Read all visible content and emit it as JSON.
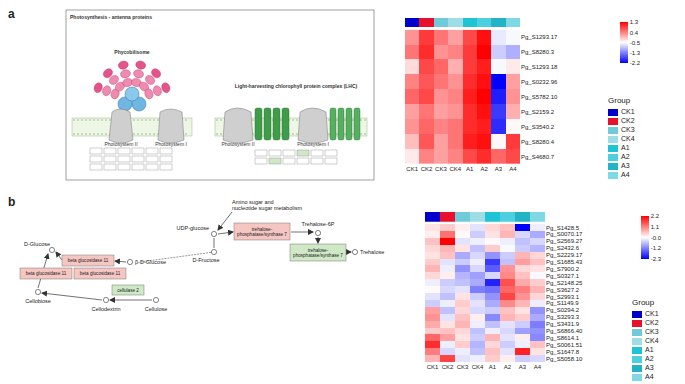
{
  "panel_labels": [
    "a",
    "b"
  ],
  "diagrams": [
    {
      "title": "Photosynthesis - antenna proteins",
      "texts": [
        "Phycobilisome",
        "Light-harvesting chlorophyll protein complex (LHC)",
        "Photosystem II",
        "Photosystem I",
        "Photosystem II",
        "Photosystem I"
      ]
    },
    {
      "nodes": [
        {
          "label": "Amino sugar and\nnucleotide sugar metabolism",
          "kind": "map"
        },
        {
          "label": "UDP-glucose",
          "kind": "compound"
        },
        {
          "label": "trehalose-\nphosphatase/synthase 7",
          "kind": "enzyme",
          "color": "#f6c6c2"
        },
        {
          "label": "Trehalose-6P",
          "kind": "compound"
        },
        {
          "label": "trehalose-\nphosphatase/synthase 7",
          "kind": "enzyme",
          "color": "#cfe8c6"
        },
        {
          "label": "Trehalose",
          "kind": "compound"
        },
        {
          "label": "D-Fructose",
          "kind": "compound"
        },
        {
          "label": "D-Glucose",
          "kind": "compound"
        },
        {
          "label": "beta glucosidase 11",
          "kind": "enzyme",
          "color": "#f6c6c2"
        },
        {
          "label": "beta glucosidase 11",
          "kind": "enzyme",
          "color": "#f6c6c2"
        },
        {
          "label": "beta glucosidase 11",
          "kind": "enzyme",
          "color": "#f6c6c2"
        },
        {
          "label": "β-D-Glucose",
          "kind": "compound"
        },
        {
          "label": "cellulase 2",
          "kind": "enzyme",
          "color": "#cfe8c6"
        },
        {
          "label": "Cellobiose",
          "kind": "compound"
        },
        {
          "label": "Cellodextrin",
          "kind": "compound"
        },
        {
          "label": "Cellulose",
          "kind": "compound"
        }
      ]
    }
  ],
  "chart_data": [
    {
      "type": "heatmap",
      "categories": [
        "CK1",
        "CK2",
        "CK3",
        "CK4",
        "A1",
        "A2",
        "A3",
        "A4"
      ],
      "colors": [
        "#0000cd",
        "#e8102c",
        "#6fcbd9",
        "#9fdde6",
        "#1fc3d6",
        "#4ccfdf",
        "#22b3c7",
        "#7fd9e4"
      ],
      "legend_title": "Group",
      "rows": [
        "Pg_S1293.17",
        "Pg_S8280.3",
        "Pg_S1293.18",
        "Pg_S0232.96",
        "Pg_S5782.10",
        "Pg_S2159.2",
        "Pg_S3540.2",
        "Pg_S8280.4",
        "Pg_S4680.7"
      ],
      "cells": [
        [
          0.3,
          0.9,
          0.5,
          0.2,
          0.8,
          1.2,
          -0.6,
          -0.5
        ],
        [
          0.5,
          1.0,
          0.3,
          0.4,
          0.9,
          1.3,
          -0.8,
          -1.0
        ],
        [
          -0.2,
          0.8,
          0.6,
          0.1,
          0.9,
          1.1,
          -0.5,
          -0.3
        ],
        [
          0.4,
          0.7,
          0.5,
          0.3,
          1.0,
          1.2,
          -2.2,
          0.2
        ],
        [
          0.6,
          0.8,
          0.3,
          0.4,
          1.1,
          1.3,
          -2.0,
          0.3
        ],
        [
          0.2,
          0.5,
          0.2,
          0.3,
          1.0,
          1.2,
          -1.8,
          0.1
        ],
        [
          0.3,
          0.6,
          0.4,
          0.5,
          1.0,
          1.1,
          -1.9,
          -0.4
        ],
        [
          0.0,
          0.7,
          0.2,
          0.5,
          1.1,
          1.2,
          -0.4,
          0.9
        ],
        [
          -0.3,
          0.4,
          0.2,
          0.4,
          0.8,
          1.0,
          0.6,
          0.8
        ]
      ],
      "zlim": [
        -2.2,
        1.3
      ],
      "zticks": [
        1.3,
        {
          "value": 0.425,
          "label": "0.4"
        },
        {
          "value": -0.45,
          "label": "-0.5"
        },
        {
          "value": -1.325,
          "label": "-1.3"
        },
        -2.2
      ]
    },
    {
      "type": "heatmap",
      "categories": [
        "CK1",
        "CK2",
        "CK3",
        "CK4",
        "A1",
        "A2",
        "A3",
        "A4"
      ],
      "colors": [
        "#0000cd",
        "#e8102c",
        "#6fcbd9",
        "#9fdde6",
        "#1fc3d6",
        "#4ccfdf",
        "#22b3c7",
        "#7fd9e4"
      ],
      "legend_title": "Group",
      "rows": [
        "Pg_S1428.5",
        "Pg_S0070.17",
        "Pg_S2569.27",
        "Pg_S2432.6",
        "Pg_S2229.17",
        "Pg_S1685.43",
        "Pg_S7900.2",
        "Pg_S0327.1",
        "Pg_S2148.25",
        "Pg_S3627.2",
        "Pg_S2993.1",
        "Pg_S1149.9",
        "Pg_S0294.2",
        "Pg_S3293.3",
        "Pg_S3431.9",
        "Pg_S6866.40",
        "Pg_S8614.1",
        "Pg_S0061.51",
        "Pg_S1647.8",
        "Pg_S5058.10"
      ],
      "cells": [
        [
          0.2,
          0.4,
          0.1,
          -0.3,
          0.3,
          0.5,
          -2.3,
          -0.2
        ],
        [
          0.1,
          1.2,
          0.0,
          -0.5,
          0.2,
          0.6,
          -0.4,
          -0.8
        ],
        [
          0.5,
          2.2,
          -0.3,
          -0.2,
          0.0,
          -0.2,
          -0.6,
          -0.4
        ],
        [
          0.3,
          0.6,
          0.2,
          -0.6,
          0.4,
          -0.1,
          -0.5,
          -0.7
        ],
        [
          0.2,
          0.5,
          -0.8,
          -0.4,
          -1.0,
          -0.5,
          0.6,
          0.3
        ],
        [
          0.4,
          -0.3,
          -0.5,
          -0.2,
          -1.8,
          -0.6,
          0.8,
          0.5
        ],
        [
          0.6,
          -0.2,
          -1.0,
          -0.4,
          -1.5,
          0.9,
          0.3,
          0.2
        ],
        [
          0.3,
          0.1,
          -0.7,
          -0.9,
          -0.4,
          1.0,
          0.5,
          -0.1
        ],
        [
          -0.2,
          -0.5,
          -0.6,
          -0.8,
          -2.0,
          1.5,
          0.7,
          0.4
        ],
        [
          0.0,
          -0.4,
          -0.3,
          -1.2,
          -1.3,
          1.3,
          1.1,
          0.6
        ],
        [
          -0.3,
          -0.6,
          0.2,
          -0.5,
          -1.0,
          1.6,
          0.9,
          0.3
        ],
        [
          -0.5,
          -0.2,
          0.4,
          -0.3,
          -0.8,
          1.0,
          0.6,
          -0.2
        ],
        [
          0.8,
          -0.6,
          0.3,
          -0.4,
          -0.5,
          0.5,
          0.2,
          -1.0
        ],
        [
          0.9,
          -0.3,
          0.5,
          0.1,
          -1.1,
          0.6,
          0.4,
          -0.8
        ],
        [
          0.7,
          0.2,
          0.6,
          -0.2,
          -0.6,
          -0.3,
          -0.5,
          -1.2
        ],
        [
          0.4,
          0.5,
          0.3,
          -0.6,
          -0.2,
          -0.4,
          -0.9,
          -1.0
        ],
        [
          1.3,
          0.8,
          0.2,
          -0.5,
          0.6,
          -0.3,
          0.1,
          -1.1
        ],
        [
          1.8,
          -0.2,
          0.4,
          -0.7,
          0.3,
          -0.5,
          -0.2,
          0.5
        ],
        [
          1.1,
          -0.4,
          -0.2,
          -0.6,
          0.5,
          -0.3,
          1.9,
          0.2
        ],
        [
          0.6,
          1.6,
          -0.3,
          -0.2,
          0.4,
          0.1,
          -0.5,
          -0.4
        ]
      ],
      "zlim": [
        -2.3,
        2.2
      ],
      "zticks": [
        2.2,
        {
          "value": 1.075,
          "label": "1.1"
        },
        {
          "value": -0.05,
          "label": "-0.0"
        },
        {
          "value": -1.175,
          "label": "-1.2"
        },
        -2.3
      ]
    }
  ]
}
